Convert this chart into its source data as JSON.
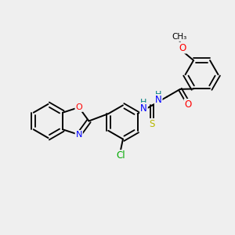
{
  "bg_color": "#efefef",
  "bond_color": "#000000",
  "atom_colors": {
    "O": "#ff0000",
    "N": "#0000ff",
    "S": "#b8b800",
    "Cl": "#00aa00",
    "H": "#008080",
    "C": "#000000"
  },
  "figsize": [
    3.0,
    3.0
  ],
  "dpi": 100
}
